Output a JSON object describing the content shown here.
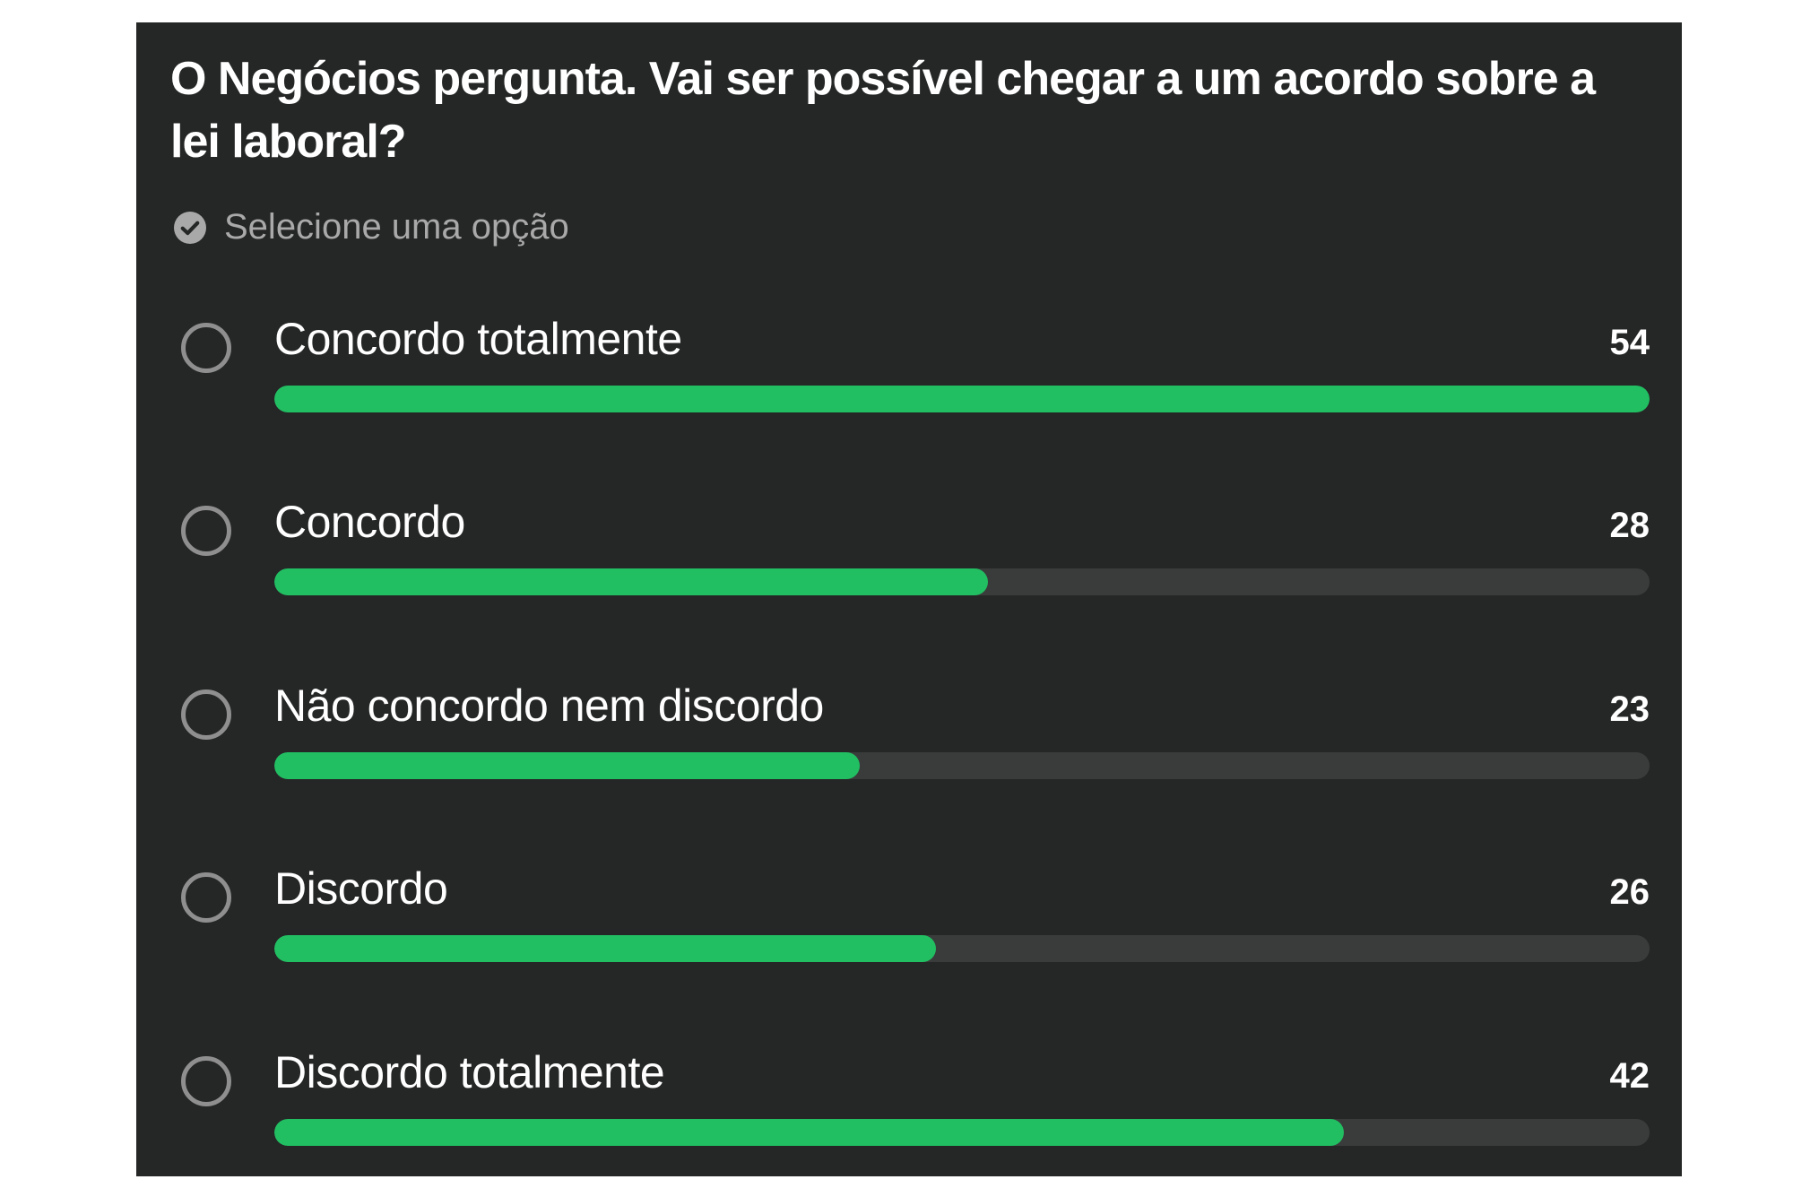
{
  "poll": {
    "question": "O Negócios pergunta. Vai ser possível chegar a um acordo sobre a lei laboral?",
    "hint": "Selecione uma opção",
    "hint_icon": "check-circle-icon",
    "accent_color": "#21bf62",
    "track_color": "#3a3b3b",
    "background_color": "#252626",
    "options": [
      {
        "label": "Concordo totalmente",
        "votes": "54",
        "fill": 1.0
      },
      {
        "label": "Concordo",
        "votes": "28",
        "fill": 0.519
      },
      {
        "label": "Não concordo nem discordo",
        "votes": "23",
        "fill": 0.426
      },
      {
        "label": "Discordo",
        "votes": "26",
        "fill": 0.481
      },
      {
        "label": "Discordo totalmente",
        "votes": "42",
        "fill": 0.778
      }
    ]
  }
}
